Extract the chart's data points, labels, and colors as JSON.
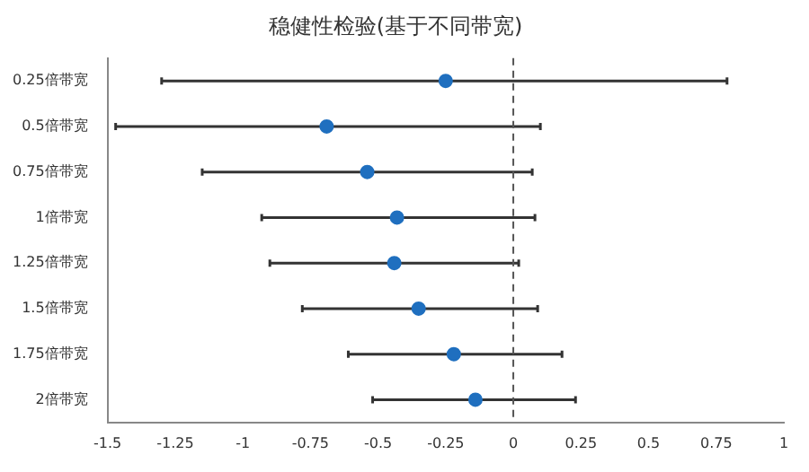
{
  "chart_data": {
    "type": "scatter",
    "orientation": "horizontal",
    "title": "稳健性检验(基于不同带宽)",
    "categories": [
      "0.25倍带宽",
      "0.5倍带宽",
      "0.75倍带宽",
      "1倍带宽",
      "1.25倍带宽",
      "1.5倍带宽",
      "1.75倍带宽",
      "2倍带宽"
    ],
    "values": [
      -0.25,
      -0.69,
      -0.54,
      -0.43,
      -0.44,
      -0.35,
      -0.22,
      -0.14
    ],
    "errors": [
      [
        -1.3,
        0.79
      ],
      [
        -1.47,
        0.1
      ],
      [
        -1.15,
        0.07
      ],
      [
        -0.93,
        0.08
      ],
      [
        -0.9,
        0.02
      ],
      [
        -0.78,
        0.09
      ],
      [
        -0.61,
        0.18
      ],
      [
        -0.52,
        0.23
      ]
    ],
    "color": "#1f6fbf",
    "xlim": [
      -1.5,
      1
    ],
    "xticks": [
      -1.5,
      -1.25,
      -1,
      -0.75,
      -0.5,
      -0.25,
      0,
      0.25,
      0.5,
      0.75,
      1
    ],
    "ref_lines": [
      {
        "axis": "x",
        "value": 0,
        "line_style": "dashed",
        "color": "#555555"
      }
    ],
    "grid": false,
    "legend": false,
    "marker": "circle"
  }
}
